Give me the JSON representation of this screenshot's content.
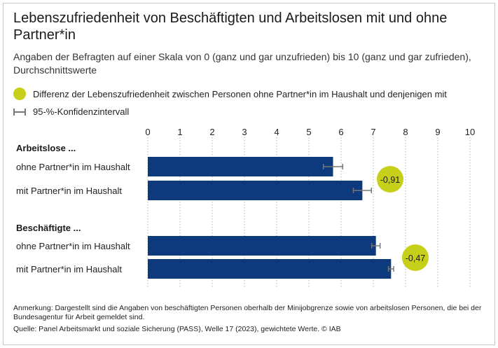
{
  "title": "Lebenszufriedenheit von Beschäftigten und Arbeitslosen mit und ohne Partner*in",
  "subtitle": "Angaben der Befragten auf einer Skala von 0 (ganz und gar unzufrieden) bis 10 (ganz und gar zufrieden), Durchschnittswerte",
  "legend": {
    "difference": "Differenz der Lebenszufriedenheit zwischen Personen ohne Partner*in im Haushalt und denjenigen mit",
    "ci": "95-%-Konfidenzintervall"
  },
  "colors": {
    "bar": "#0c3a7d",
    "dot": "#c6d01a",
    "ci": "#777777",
    "grid": "#b0b0b0"
  },
  "chart_data": {
    "type": "bar",
    "orientation": "horizontal",
    "xlim": [
      0,
      10
    ],
    "ticks": [
      "0",
      "1",
      "2",
      "3",
      "4",
      "5",
      "6",
      "7",
      "8",
      "9",
      "10"
    ],
    "groups": [
      {
        "label": "Arbeitslose ...",
        "bars": [
          {
            "label": "ohne Partner*in im Haushalt",
            "value": 5.75,
            "ci": [
              5.45,
              6.05
            ]
          },
          {
            "label": "mit Partner*in im Haushalt",
            "value": 6.66,
            "ci": [
              6.38,
              6.94
            ]
          }
        ],
        "difference": "-0,91"
      },
      {
        "label": "Beschäftigte ...",
        "bars": [
          {
            "label": "ohne Partner*in im Haushalt",
            "value": 7.08,
            "ci": [
              6.95,
              7.21
            ]
          },
          {
            "label": "mit Partner*in im Haushalt",
            "value": 7.55,
            "ci": [
              7.47,
              7.63
            ]
          }
        ],
        "difference": "-0,47"
      }
    ]
  },
  "note": "Anmerkung: Dargestellt sind die Angaben von beschäftigten Personen oberhalb der Minijobgrenze sowie von arbeitslosen Personen, die bei der Bundesagentur für Arbeit gemeldet sind.",
  "source": "Quelle: Panel Arbeitsmarkt und soziale Sicherung (PASS), Welle 17 (2023), gewichtete Werte. © IAB"
}
